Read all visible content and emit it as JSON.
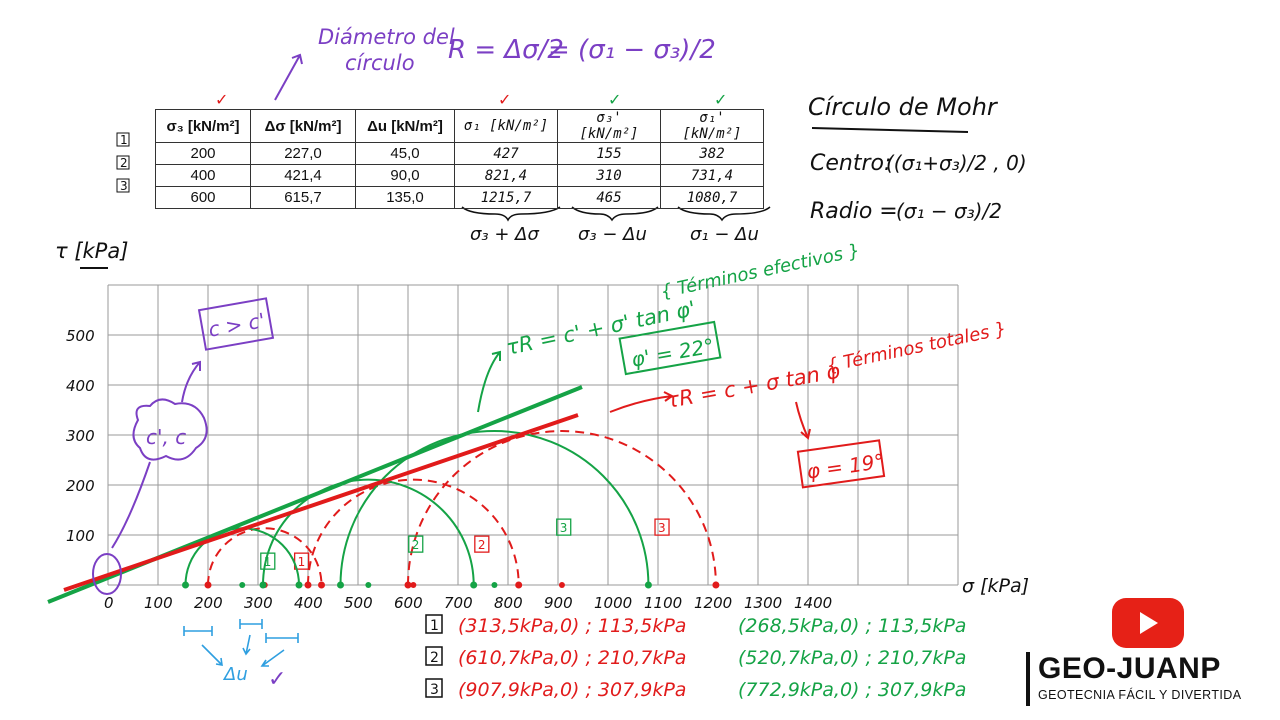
{
  "diameter_note": {
    "label_line1": "Diámetro del",
    "label_line2": "círculo",
    "formula_left": "R = Δσ/2",
    "formula_right": "= (σ₁ − σ₃)/2"
  },
  "table": {
    "headers": [
      "σ₃ [kN/m²]",
      "Δσ [kN/m²]",
      "Δu [kN/m²]",
      "σ₁ [kN/m²]",
      "σ₃' [kN/m²]",
      "σ₁' [kN/m²]"
    ],
    "row_markers": [
      "1",
      "2",
      "3"
    ],
    "rows": [
      [
        "200",
        "227,0",
        "45,0",
        "427",
        "155",
        "382"
      ],
      [
        "400",
        "421,4",
        "90,0",
        "821,4",
        "310",
        "731,4"
      ],
      [
        "600",
        "615,7",
        "135,0",
        "1215,7",
        "465",
        "1080,7"
      ]
    ],
    "check_marks": [
      "✓",
      "✓",
      "✓",
      "✓",
      "✓"
    ],
    "brace_labels": [
      "σ₃ + Δσ",
      "σ₃ − Δu",
      "σ₁ − Δu"
    ]
  },
  "mohr_notes": {
    "title": "Círculo de Mohr",
    "center_label": "Centro:",
    "center_formula": "((σ₁+σ₃)/2 , 0)",
    "radius_label": "Radio =",
    "radius_formula": "(σ₁ − σ₃)/2"
  },
  "annotations": {
    "effective_envelope": "τR = c' + σ' tan φ'",
    "effective_terms": "{ Términos efectivos }",
    "effective_angle": "φ' = 22°",
    "total_envelope": "τR = c + σ tan φ",
    "total_terms": "{ Términos totales }",
    "total_angle": "φ = 19°",
    "cohesion": "c', c",
    "cohesion_compare": "c > c'",
    "delta_u": "Δu"
  },
  "chart_data": {
    "type": "scatter",
    "xlabel": "σ [kPa]",
    "ylabel": "τ [kPa]",
    "xlim": [
      0,
      1700
    ],
    "ylim": [
      0,
      600
    ],
    "x_ticks": [
      0,
      100,
      200,
      300,
      400,
      500,
      600,
      700,
      800,
      900,
      1000,
      1100,
      1200,
      1300,
      1400
    ],
    "y_ticks": [
      100,
      200,
      300,
      400,
      500
    ],
    "grid": true,
    "total_circles": [
      {
        "label": "1",
        "center": 313.5,
        "radius": 113.5
      },
      {
        "label": "2",
        "center": 610.7,
        "radius": 210.7
      },
      {
        "label": "3",
        "center": 907.9,
        "radius": 307.9
      }
    ],
    "effective_circles": [
      {
        "label": "1",
        "center": 268.5,
        "radius": 113.5
      },
      {
        "label": "2",
        "center": 520.7,
        "radius": 210.7
      },
      {
        "label": "3",
        "center": 772.9,
        "radius": 307.9
      }
    ],
    "envelopes": [
      {
        "name": "efectivos",
        "phi_deg": 22
      },
      {
        "name": "totales",
        "phi_deg": 19
      }
    ]
  },
  "results": {
    "markers": [
      "1",
      "2",
      "3"
    ],
    "total": [
      "(313,5kPa,0) ; 113,5kPa",
      "(610,7kPa,0) ; 210,7kPa",
      "(907,9kPa,0) ; 307,9kPa"
    ],
    "effective": [
      "(268,5kPa,0) ; 113,5kPa",
      "(520,7kPa,0) ; 210,7kPa",
      "(772,9kPa,0) ; 307,9kPa"
    ]
  },
  "logo": {
    "brand": "GEO-JUANP",
    "tagline": "GEOTECNIA FÁCIL Y DIVERTIDA"
  },
  "colors": {
    "total": "#e11b1b",
    "effective": "#15a346",
    "notes": "#7b3fc4",
    "ink": "#111111",
    "delta_u": "#2f9fe0",
    "grid": "#9a9a9a"
  }
}
